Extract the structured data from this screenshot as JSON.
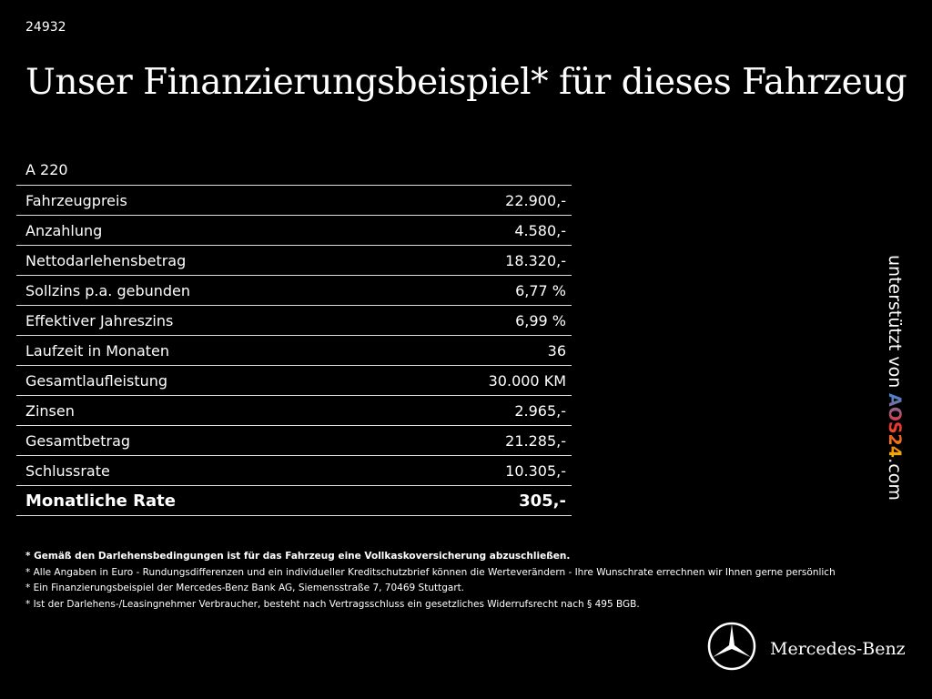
{
  "header": {
    "id": "24932",
    "title": "Unser Finanzierungsbeispiel* für dieses Fahrzeug"
  },
  "table": {
    "model": "A 220",
    "rows": [
      [
        "Fahrzeugpreis",
        "22.900,-"
      ],
      [
        "Anzahlung",
        "4.580,-"
      ],
      [
        "Nettodarlehensbetrag",
        "18.320,-"
      ],
      [
        "Sollzins p.a. gebunden",
        "6,77 %"
      ],
      [
        "Effektiver Jahreszins",
        "6,99 %"
      ],
      [
        "Laufzeit in Monaten",
        "36"
      ],
      [
        "Gesamtlaufleistung",
        "30.000 KM"
      ],
      [
        "Zinsen",
        "2.965,-"
      ],
      [
        "Gesamtbetrag",
        "21.285,-"
      ],
      [
        "Schlussrate",
        "10.305,-"
      ]
    ],
    "total": [
      "Monatliche Rate",
      "305,-"
    ]
  },
  "footnotes": [
    "* Gemäß den Darlehensbedingungen ist für das Fahrzeug eine Vollkaskoversicherung abzuschließen.",
    "* Alle Angaben in Euro - Rundungsdifferenzen und ein individueller Kreditschutzbrief können die Werteverändern - Ihre Wunschrate errechnen wir Ihnen gerne persönlich",
    "* Ein Finanzierungsbeispiel der Mercedes-Benz Bank AG, Siemensstraße 7, 70469 Stuttgart.",
    "* Ist der Darlehens-/Leasingnehmer Verbraucher, besteht nach Vertragsschluss ein gesetzliches Widerrufsrecht nach § 495 BGB."
  ],
  "sidebar": {
    "text": "unterstützt von",
    "brand": "AOS24",
    "suffix": ".com"
  },
  "brand": "Mercedes-Benz"
}
